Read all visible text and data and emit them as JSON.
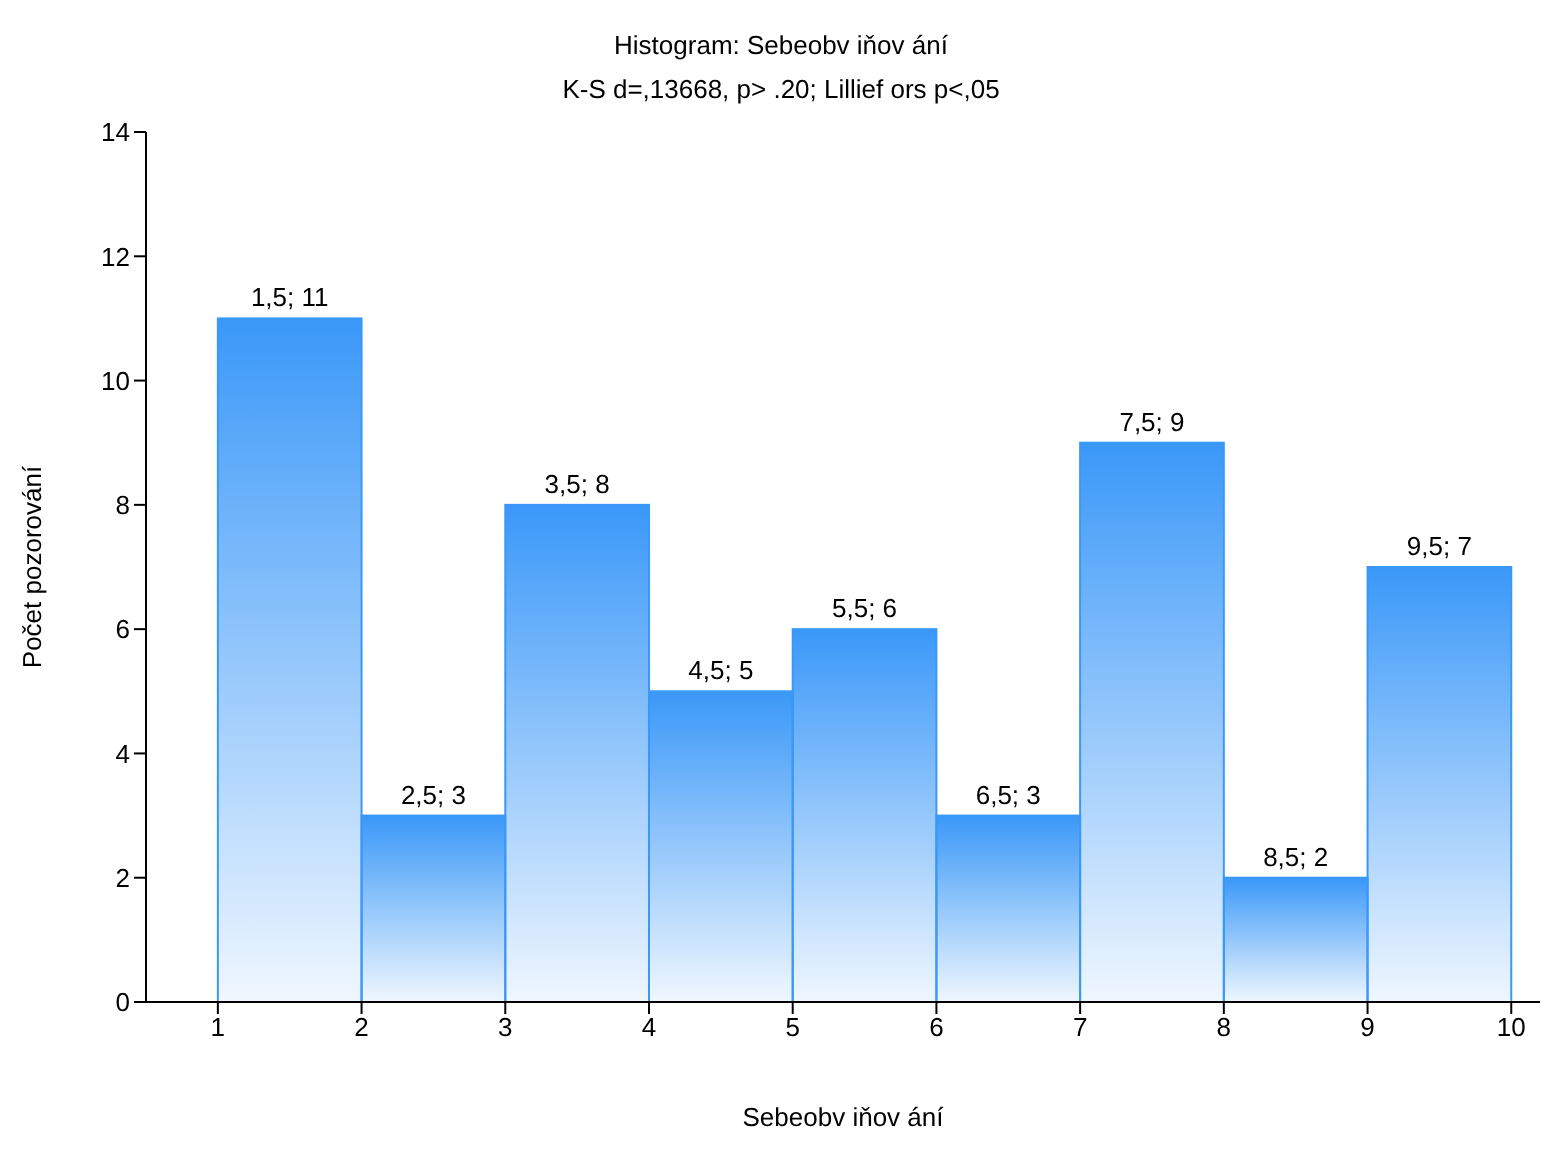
{
  "chart_data": {
    "type": "histogram",
    "title": "Histogram: Sebeobv iňov ání",
    "subtitle": "K-S d=,13668, p> .20; Lillief ors p<,05",
    "xlabel": "Sebeobv iňov ání",
    "ylabel": "Počet pozorování",
    "bins": [
      1,
      2,
      3,
      4,
      5,
      6,
      7,
      8,
      9,
      10
    ],
    "values": [
      11,
      3,
      8,
      5,
      6,
      3,
      9,
      2,
      7
    ],
    "value_labels": [
      "1,5; 11",
      "2,5; 3",
      "3,5; 8",
      "4,5; 5",
      "5,5; 6",
      "6,5; 3",
      "7,5; 9",
      "8,5; 2",
      "9,5; 7"
    ],
    "color": "#3a98f8",
    "xlim": [
      0.5,
      10.2
    ],
    "xticks": [
      1,
      2,
      3,
      4,
      5,
      6,
      7,
      8,
      9,
      10
    ],
    "ylim": [
      0,
      14
    ],
    "yticks": [
      0,
      2,
      4,
      6,
      8,
      10,
      12,
      14
    ],
    "grid": false,
    "legend": false
  }
}
